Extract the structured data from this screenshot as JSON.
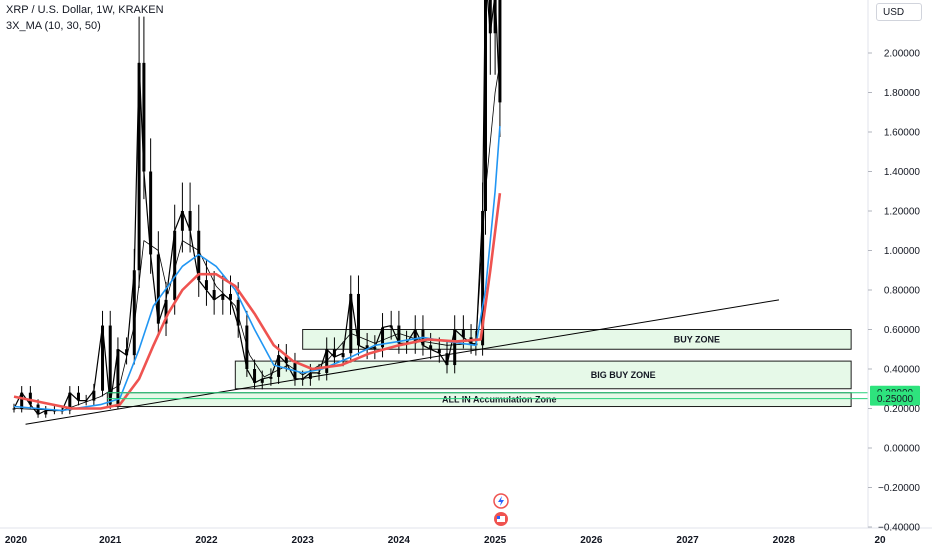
{
  "header": {
    "title": "XRP / U.S. Dollar, 1W, KRAKEN",
    "indicator": "3X_MA (10, 30, 50)",
    "currency": "USD"
  },
  "colors": {
    "candle": "#000000",
    "ma_fast": "#000000",
    "ma_mid": "#2196f3",
    "ma_slow": "#ef5350",
    "zone_fill": "#e6f9e8",
    "zone_border": "#1b1b1b",
    "accum_line": "#26d07c",
    "trendline": "#000000"
  },
  "chart_data": {
    "type": "line",
    "title": "XRP / U.S. Dollar, 1W, KRAKEN",
    "xlabel": "",
    "ylabel": "",
    "x_ticks": [
      "2020",
      "2021",
      "2022",
      "2023",
      "2024",
      "2025",
      "2026",
      "2027",
      "2028",
      "20"
    ],
    "y_ticks": [
      "2.00000",
      "1.80000",
      "1.60000",
      "1.40000",
      "1.20000",
      "1.00000",
      "0.80000",
      "0.60000",
      "0.40000",
      "0.20000",
      "0.00000",
      "−0.20000",
      "−0.40000"
    ],
    "ylim": [
      -0.41,
      2.2
    ],
    "xlim": [
      2019.97,
      2029.0
    ],
    "grid": false,
    "series": [
      {
        "name": "XRP / U.S. Dollar",
        "values": [
          [
            2020.0,
            0.2
          ],
          [
            2020.08,
            0.28
          ],
          [
            2020.17,
            0.22
          ],
          [
            2020.25,
            0.17
          ],
          [
            2020.33,
            0.19
          ],
          [
            2020.42,
            0.19
          ],
          [
            2020.5,
            0.19
          ],
          [
            2020.58,
            0.28
          ],
          [
            2020.67,
            0.24
          ],
          [
            2020.75,
            0.24
          ],
          [
            2020.83,
            0.29
          ],
          [
            2020.92,
            0.62
          ],
          [
            2021.0,
            0.22
          ],
          [
            2021.08,
            0.5
          ],
          [
            2021.17,
            0.47
          ],
          [
            2021.25,
            0.9
          ],
          [
            2021.3,
            1.95
          ],
          [
            2021.35,
            1.4
          ],
          [
            2021.42,
            0.98
          ],
          [
            2021.5,
            0.63
          ],
          [
            2021.58,
            0.75
          ],
          [
            2021.67,
            1.1
          ],
          [
            2021.75,
            1.2
          ],
          [
            2021.83,
            1.1
          ],
          [
            2021.92,
            0.85
          ],
          [
            2022.0,
            0.8
          ],
          [
            2022.08,
            0.75
          ],
          [
            2022.17,
            0.78
          ],
          [
            2022.25,
            0.75
          ],
          [
            2022.33,
            0.62
          ],
          [
            2022.42,
            0.4
          ],
          [
            2022.5,
            0.33
          ],
          [
            2022.58,
            0.35
          ],
          [
            2022.67,
            0.36
          ],
          [
            2022.75,
            0.47
          ],
          [
            2022.83,
            0.43
          ],
          [
            2022.92,
            0.35
          ],
          [
            2023.0,
            0.35
          ],
          [
            2023.08,
            0.38
          ],
          [
            2023.17,
            0.38
          ],
          [
            2023.25,
            0.5
          ],
          [
            2023.33,
            0.46
          ],
          [
            2023.42,
            0.48
          ],
          [
            2023.5,
            0.78
          ],
          [
            2023.58,
            0.52
          ],
          [
            2023.67,
            0.5
          ],
          [
            2023.75,
            0.51
          ],
          [
            2023.83,
            0.61
          ],
          [
            2023.92,
            0.62
          ],
          [
            2024.0,
            0.53
          ],
          [
            2024.08,
            0.53
          ],
          [
            2024.17,
            0.6
          ],
          [
            2024.25,
            0.52
          ],
          [
            2024.33,
            0.5
          ],
          [
            2024.42,
            0.48
          ],
          [
            2024.5,
            0.42
          ],
          [
            2024.58,
            0.6
          ],
          [
            2024.67,
            0.56
          ],
          [
            2024.75,
            0.53
          ],
          [
            2024.8,
            0.52
          ],
          [
            2024.87,
            1.2
          ],
          [
            2024.9,
            2.4
          ],
          [
            2024.95,
            2.1
          ],
          [
            2025.0,
            2.3
          ],
          [
            2025.05,
            1.75
          ]
        ]
      },
      {
        "name": "MA 10",
        "values": [
          [
            2020.0,
            0.2
          ],
          [
            2020.5,
            0.19
          ],
          [
            2020.9,
            0.26
          ],
          [
            2021.1,
            0.32
          ],
          [
            2021.25,
            0.62
          ],
          [
            2021.35,
            1.05
          ],
          [
            2021.5,
            1.0
          ],
          [
            2021.6,
            0.78
          ],
          [
            2021.75,
            1.05
          ],
          [
            2021.92,
            1.0
          ],
          [
            2022.1,
            0.82
          ],
          [
            2022.3,
            0.72
          ],
          [
            2022.45,
            0.47
          ],
          [
            2022.6,
            0.36
          ],
          [
            2022.85,
            0.42
          ],
          [
            2023.0,
            0.37
          ],
          [
            2023.25,
            0.44
          ],
          [
            2023.5,
            0.58
          ],
          [
            2023.75,
            0.53
          ],
          [
            2024.0,
            0.58
          ],
          [
            2024.25,
            0.54
          ],
          [
            2024.5,
            0.52
          ],
          [
            2024.8,
            0.53
          ],
          [
            2024.9,
            1.3
          ],
          [
            2025.0,
            1.8
          ],
          [
            2025.05,
            1.95
          ]
        ]
      },
      {
        "name": "MA 30",
        "values": [
          [
            2020.0,
            0.21
          ],
          [
            2020.5,
            0.19
          ],
          [
            2020.9,
            0.22
          ],
          [
            2021.1,
            0.25
          ],
          [
            2021.3,
            0.5
          ],
          [
            2021.45,
            0.72
          ],
          [
            2021.6,
            0.82
          ],
          [
            2021.75,
            0.92
          ],
          [
            2021.92,
            0.98
          ],
          [
            2022.1,
            0.92
          ],
          [
            2022.3,
            0.8
          ],
          [
            2022.5,
            0.6
          ],
          [
            2022.7,
            0.42
          ],
          [
            2023.0,
            0.38
          ],
          [
            2023.2,
            0.4
          ],
          [
            2023.5,
            0.46
          ],
          [
            2023.75,
            0.52
          ],
          [
            2024.0,
            0.54
          ],
          [
            2024.25,
            0.56
          ],
          [
            2024.5,
            0.54
          ],
          [
            2024.8,
            0.52
          ],
          [
            2024.9,
            0.8
          ],
          [
            2025.0,
            1.3
          ],
          [
            2025.05,
            1.63
          ]
        ]
      },
      {
        "name": "MA 50",
        "values": [
          [
            2020.0,
            0.26
          ],
          [
            2020.3,
            0.23
          ],
          [
            2020.6,
            0.2
          ],
          [
            2020.9,
            0.2
          ],
          [
            2021.1,
            0.22
          ],
          [
            2021.3,
            0.35
          ],
          [
            2021.45,
            0.52
          ],
          [
            2021.6,
            0.68
          ],
          [
            2021.75,
            0.8
          ],
          [
            2021.92,
            0.88
          ],
          [
            2022.1,
            0.88
          ],
          [
            2022.3,
            0.82
          ],
          [
            2022.5,
            0.68
          ],
          [
            2022.7,
            0.52
          ],
          [
            2022.9,
            0.44
          ],
          [
            2023.1,
            0.4
          ],
          [
            2023.4,
            0.42
          ],
          [
            2023.7,
            0.48
          ],
          [
            2024.0,
            0.52
          ],
          [
            2024.3,
            0.55
          ],
          [
            2024.6,
            0.54
          ],
          [
            2024.85,
            0.55
          ],
          [
            2024.95,
            0.9
          ],
          [
            2025.05,
            1.29
          ]
        ]
      }
    ],
    "trendline": {
      "from": [
        2020.12,
        0.12
      ],
      "to": [
        2027.95,
        0.75
      ]
    },
    "zones": [
      {
        "label": "BUY ZONE",
        "x": [
          2023.0,
          2028.7
        ],
        "y": [
          0.5,
          0.6
        ]
      },
      {
        "label": "BIG BUY ZONE",
        "x": [
          2022.3,
          2028.7
        ],
        "y": [
          0.3,
          0.44
        ]
      },
      {
        "label": "ALL IN Accumulation Zone",
        "x": [
          2020.97,
          2028.7
        ],
        "y": [
          0.21,
          0.28
        ]
      }
    ],
    "levels": [
      {
        "label": "0.28000",
        "value": 0.28
      },
      {
        "label": "0.25000",
        "value": 0.25
      }
    ]
  }
}
